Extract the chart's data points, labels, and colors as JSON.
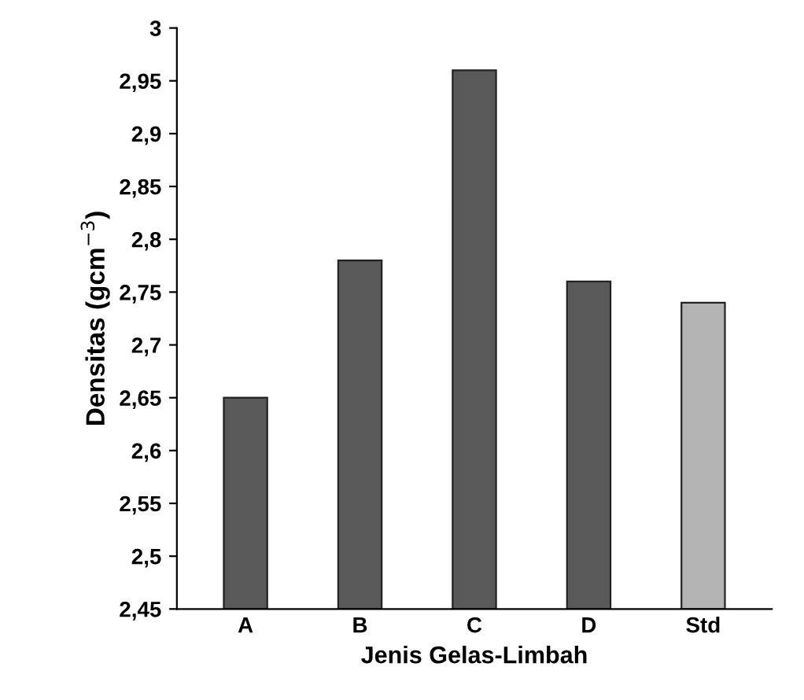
{
  "chart_data": {
    "type": "bar",
    "xlabel": "Jenis Gelas-Limbah",
    "ylabel": "Densitas (gcm$^{−3}$)",
    "categories": [
      "A",
      "B",
      "C",
      "D",
      "Std"
    ],
    "values": [
      2.65,
      2.78,
      2.96,
      2.76,
      2.74
    ],
    "colors": [
      "#595959",
      "#595959",
      "#595959",
      "#595959",
      "#b4b4b4"
    ],
    "ylim": [
      2.45,
      3
    ],
    "yticks": [
      {
        "value": 2.45,
        "label": "2,45"
      },
      {
        "value": 2.5,
        "label": "2,5"
      },
      {
        "value": 2.55,
        "label": "2,55"
      },
      {
        "value": 2.6,
        "label": "2,6"
      },
      {
        "value": 2.65,
        "label": "2,65"
      },
      {
        "value": 2.7,
        "label": "2,7"
      },
      {
        "value": 2.75,
        "label": "2,75"
      },
      {
        "value": 2.8,
        "label": "2,8"
      },
      {
        "value": 2.85,
        "label": "2,85"
      },
      {
        "value": 2.9,
        "label": "2,9"
      },
      {
        "value": 2.95,
        "label": "2,95"
      },
      {
        "value": 3,
        "label": "3"
      }
    ],
    "grid": false,
    "legend": false
  }
}
